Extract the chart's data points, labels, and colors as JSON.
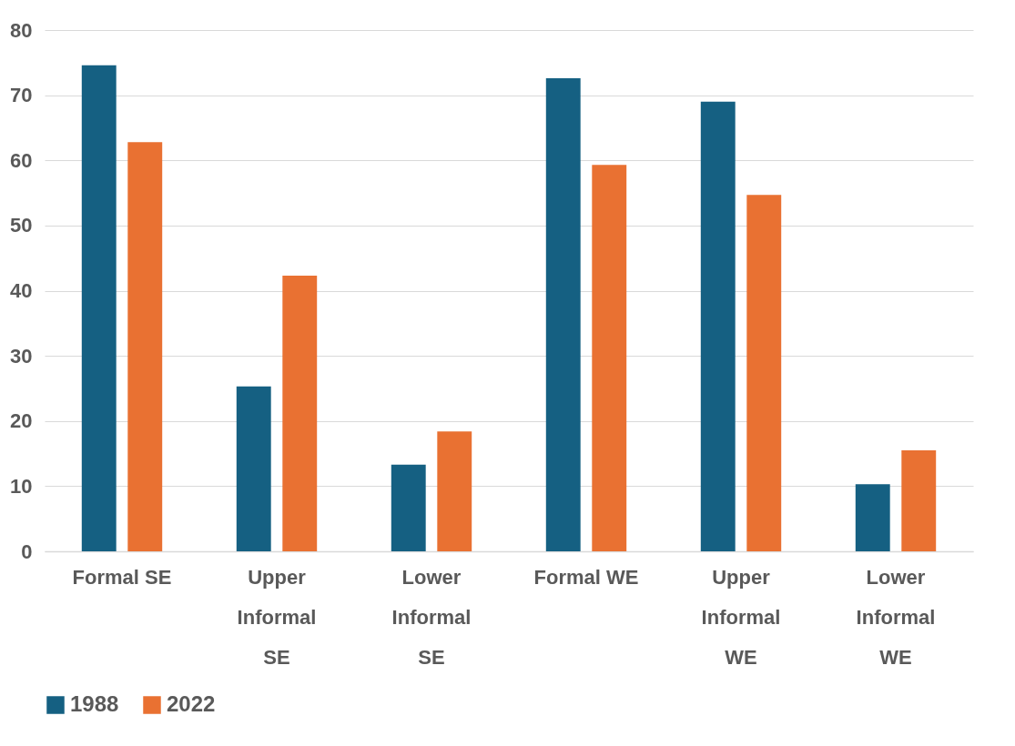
{
  "chart_data": {
    "type": "bar",
    "categories": [
      "Formal SE",
      "Upper Informal SE",
      "Lower Informal SE",
      "Formal WE",
      "Upper Informal WE",
      "Lower Informal WE"
    ],
    "series": [
      {
        "name": "1988",
        "color": "#156082",
        "values": [
          74.6,
          25.3,
          13.3,
          72.6,
          69.0,
          10.3
        ]
      },
      {
        "name": "2022",
        "color": "#e97132",
        "values": [
          62.8,
          42.3,
          18.4,
          59.3,
          54.7,
          15.5
        ]
      }
    ],
    "ylim": [
      0,
      80
    ],
    "yticks": [
      0,
      10,
      20,
      30,
      40,
      50,
      60,
      70,
      80
    ],
    "grid": "y",
    "legend": "bottom"
  }
}
